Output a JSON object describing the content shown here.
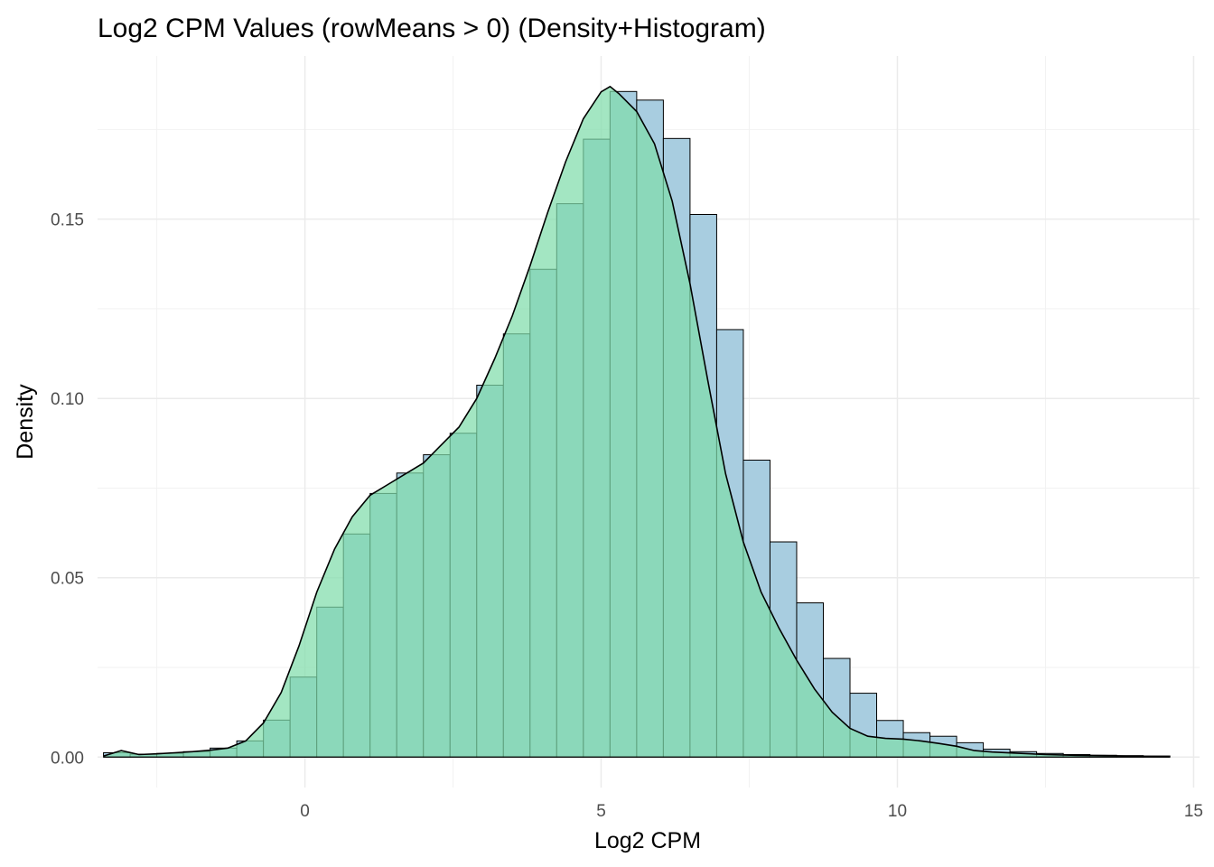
{
  "chart_data": {
    "type": "bar",
    "title": "Log2 CPM Values (rowMeans > 0) (Density+Histogram)",
    "xlabel": "Log2 CPM",
    "ylabel": "Density",
    "xlim": [
      -3.5,
      15.1
    ],
    "ylim": [
      -0.0085,
      0.1955
    ],
    "x_ticks": [
      0,
      5,
      10,
      15
    ],
    "x_tick_labels": [
      "0",
      "5",
      "10",
      "15"
    ],
    "y_ticks": [
      0.0,
      0.05,
      0.1,
      0.15
    ],
    "y_tick_labels": [
      "0.00",
      "0.05",
      "0.10",
      "0.15"
    ],
    "grid": true,
    "legend": "none",
    "histogram": {
      "bin_width": 0.45,
      "fill": "#a8cde0",
      "stroke": "#000000",
      "bins_left": [
        -3.4,
        -2.95,
        -2.5,
        -2.05,
        -1.6,
        -1.15,
        -0.7,
        -0.25,
        0.2,
        0.65,
        1.1,
        1.55,
        2.0,
        2.45,
        2.9,
        3.35,
        3.8,
        4.25,
        4.7,
        5.15,
        5.6,
        6.05,
        6.5,
        6.95,
        7.4,
        7.85,
        8.3,
        8.75,
        9.2,
        9.65,
        10.1,
        10.55,
        11.0,
        11.45,
        11.9,
        12.35,
        12.8,
        13.25,
        13.7,
        14.15
      ],
      "values": [
        0.0012,
        0.0008,
        0.001,
        0.0015,
        0.0025,
        0.0045,
        0.0103,
        0.0223,
        0.0418,
        0.0622,
        0.0735,
        0.0792,
        0.0843,
        0.0903,
        0.1037,
        0.118,
        0.136,
        0.1543,
        0.1723,
        0.1856,
        0.1832,
        0.1725,
        0.1513,
        0.1192,
        0.0828,
        0.06,
        0.043,
        0.0275,
        0.0178,
        0.0102,
        0.0068,
        0.0058,
        0.004,
        0.0022,
        0.0015,
        0.001,
        0.0007,
        0.0005,
        0.0004,
        0.0003
      ]
    },
    "density": {
      "fill": "#7fdcaa",
      "fill_opacity": 0.72,
      "stroke": "#000000",
      "x": [
        -3.4,
        -3.1,
        -2.8,
        -2.5,
        -2.2,
        -1.9,
        -1.6,
        -1.3,
        -1.0,
        -0.7,
        -0.4,
        -0.1,
        0.2,
        0.5,
        0.8,
        1.1,
        1.4,
        1.7,
        2.0,
        2.3,
        2.6,
        2.9,
        3.2,
        3.5,
        3.8,
        4.1,
        4.4,
        4.7,
        5.0,
        5.15,
        5.3,
        5.6,
        5.9,
        6.2,
        6.5,
        6.8,
        7.1,
        7.4,
        7.7,
        8.0,
        8.3,
        8.6,
        8.9,
        9.2,
        9.5,
        9.8,
        10.1,
        10.4,
        10.7,
        11.0,
        11.3,
        11.6,
        12.0,
        12.5,
        13.0,
        13.5,
        14.0,
        14.6
      ],
      "y": [
        0.0003,
        0.0018,
        0.0007,
        0.0009,
        0.0012,
        0.0015,
        0.0019,
        0.0025,
        0.0045,
        0.0095,
        0.018,
        0.031,
        0.046,
        0.058,
        0.067,
        0.073,
        0.076,
        0.079,
        0.082,
        0.087,
        0.092,
        0.1,
        0.111,
        0.123,
        0.137,
        0.152,
        0.166,
        0.178,
        0.1855,
        0.187,
        0.185,
        0.18,
        0.171,
        0.155,
        0.132,
        0.105,
        0.079,
        0.06,
        0.046,
        0.036,
        0.027,
        0.019,
        0.0125,
        0.008,
        0.0058,
        0.0052,
        0.005,
        0.0045,
        0.0038,
        0.003,
        0.0018,
        0.0014,
        0.0011,
        0.0007,
        0.0005,
        0.0004,
        0.0002,
        0.0001
      ]
    }
  }
}
